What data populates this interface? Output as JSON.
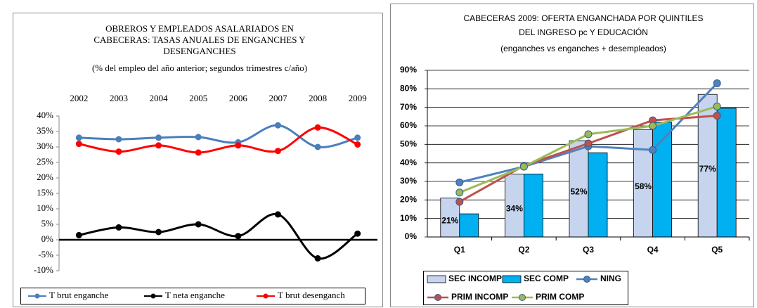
{
  "chart_data": [
    {
      "type": "line",
      "title": [
        "OBREROS Y EMPLEADOS ASALARIADOS EN",
        "CABECERAS: TASAS ANUALES  DE ENGANCHES Y",
        "DESENGANCHES"
      ],
      "subtitle": "(% del empleo del año anterior; segundos trimestres c/año)",
      "categories": [
        "2002",
        "2003",
        "2004",
        "2005",
        "2006",
        "2007",
        "2008",
        "2009"
      ],
      "smooth": true,
      "grid": false,
      "legend": "bottom",
      "ylim": [
        -10,
        40
      ],
      "yticks": [
        {
          "value": -10,
          "label": "-10%"
        },
        {
          "value": -5,
          "label": "-5%"
        },
        {
          "value": 0,
          "label": "0%"
        },
        {
          "value": 5,
          "label": "5%"
        },
        {
          "value": 10,
          "label": "10%"
        },
        {
          "value": 15,
          "label": "15%"
        },
        {
          "value": 20,
          "label": "20%"
        },
        {
          "value": 25,
          "label": "25%"
        },
        {
          "value": 30,
          "label": "30%"
        },
        {
          "value": 35,
          "label": "35%"
        },
        {
          "value": 40,
          "label": "40%"
        }
      ],
      "series": [
        {
          "name": "T brut enganche",
          "color": "#4a7ebb",
          "values": [
            33,
            32.5,
            33,
            33.2,
            31.5,
            37,
            30,
            33
          ]
        },
        {
          "name": "T neta enganche",
          "color": "#000000",
          "values": [
            1.5,
            4,
            2.5,
            5,
            1.2,
            8.2,
            -6,
            2
          ]
        },
        {
          "name": "T brut desenganch",
          "color": "#ff0000",
          "values": [
            31,
            28.5,
            30.5,
            28.2,
            30.5,
            28.7,
            36.3,
            30.8
          ]
        }
      ]
    },
    {
      "type": "bar",
      "title": [
        "CABECERAS 2009: OFERTA ENGANCHADA POR QUINTILES",
        "DEL INGRESO pc Y EDUCACIÓN"
      ],
      "subtitle": "(enganches vs enganches + desempleados)",
      "categories": [
        "Q1",
        "Q2",
        "Q3",
        "Q4",
        "Q5"
      ],
      "grid": true,
      "legend": "bottom",
      "ylim": [
        0,
        90
      ],
      "yticks": [
        {
          "value": 0,
          "label": "0%"
        },
        {
          "value": 10,
          "label": "10%"
        },
        {
          "value": 20,
          "label": "20%"
        },
        {
          "value": 30,
          "label": "30%"
        },
        {
          "value": 40,
          "label": "40%"
        },
        {
          "value": 50,
          "label": "50%"
        },
        {
          "value": 60,
          "label": "60%"
        },
        {
          "value": 70,
          "label": "70%"
        },
        {
          "value": 80,
          "label": "80%"
        },
        {
          "value": 90,
          "label": "90%"
        }
      ],
      "series": [
        {
          "name": "SEC INCOMP",
          "type": "bar",
          "color": "#c6d4ee",
          "values": [
            21,
            34,
            52,
            58,
            77
          ],
          "value_labels": [
            "21%",
            "34%",
            "52%",
            "58%",
            "77%"
          ]
        },
        {
          "name": "SEC COMP",
          "type": "bar",
          "color": "#00b0f0",
          "values": [
            12.5,
            34,
            45.5,
            62,
            69.5
          ]
        },
        {
          "name": "NING",
          "type": "line",
          "color": "#4f81bd",
          "values": [
            29.5,
            38,
            49,
            47,
            83
          ]
        },
        {
          "name": "PRIM INCOMP",
          "type": "line",
          "color": "#c0504d",
          "values": [
            19,
            38.5,
            50.5,
            63,
            65.5
          ]
        },
        {
          "name": "PRIM COMP",
          "type": "line",
          "color": "#9bbb59",
          "values": [
            24,
            38,
            55.5,
            60,
            70.5
          ]
        }
      ]
    }
  ]
}
